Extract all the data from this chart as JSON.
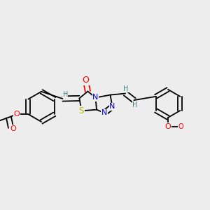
{
  "bg": "#ededee",
  "lw": 1.3,
  "dbo": 0.012,
  "fs": 8.0,
  "Hfs": 7.0,
  "colors": {
    "O": "#ff0000",
    "N": "#0000cc",
    "S": "#b8b800",
    "H": "#3a8080",
    "C": "#000000"
  },
  "figsize": [
    3.0,
    3.0
  ],
  "dpi": 100
}
